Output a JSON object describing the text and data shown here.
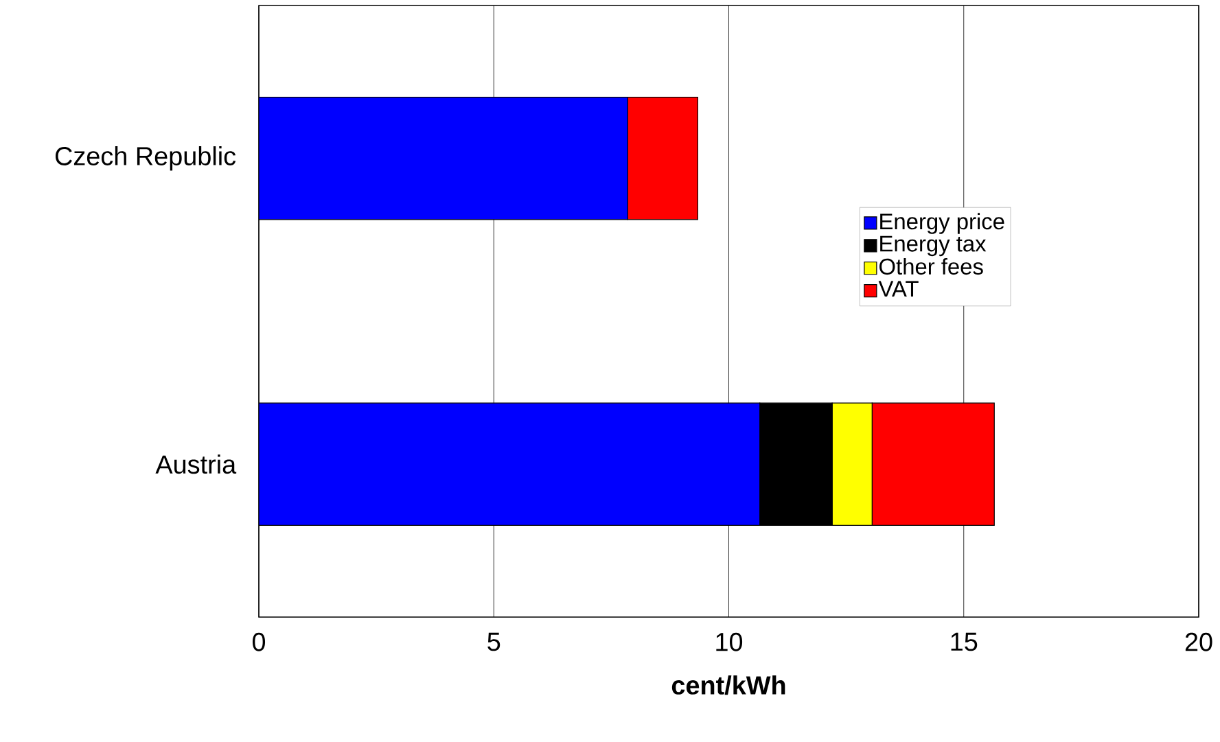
{
  "chart_data": {
    "type": "bar",
    "orientation": "horizontal",
    "stacked": true,
    "xlabel": "cent/kWh",
    "categories": [
      "Czech Republic",
      "Austria"
    ],
    "series": [
      {
        "name": "Energy price",
        "color": "#0000ff",
        "values": [
          7.85,
          10.66
        ]
      },
      {
        "name": "Energy tax",
        "color": "#000000",
        "values": [
          0,
          1.54
        ]
      },
      {
        "name": "Other fees",
        "color": "#ffff00",
        "values": [
          0,
          0.85
        ]
      },
      {
        "name": "VAT",
        "color": "#ff0000",
        "values": [
          1.49,
          2.6
        ]
      }
    ],
    "xlim": [
      0,
      20
    ],
    "xticks": [
      0,
      5,
      10,
      15,
      20
    ],
    "grid": "x",
    "legend": "center right"
  }
}
